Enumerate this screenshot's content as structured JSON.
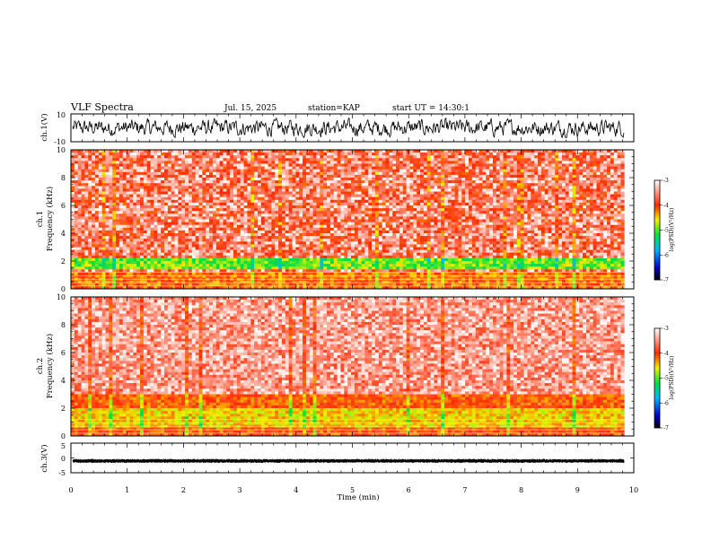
{
  "header": {
    "title": "VLF Spectra",
    "date": "Jul. 15, 2025",
    "station": "station=KAP",
    "start_time": "start UT =  14:30:1"
  },
  "chart_data": [
    {
      "type": "line",
      "name": "ch1-voltage",
      "ylabel": "ch.1(V)",
      "ylim": [
        -10,
        10
      ],
      "yticks": [
        "10",
        "-10"
      ],
      "xlim": [
        0,
        10
      ],
      "x_extent_min": [
        0,
        9.83
      ],
      "description_series": "noisy waveform roughly between -6 and 6 V"
    },
    {
      "type": "heatmap",
      "name": "ch1-spectrogram",
      "ylabel": "ch.1\nFrequency (kHz)",
      "ylabel_lines": [
        "ch.1",
        "Frequency (kHz)"
      ],
      "ylim": [
        0,
        10
      ],
      "yticks": [
        "0",
        "2",
        "4",
        "6",
        "8",
        "10"
      ],
      "xlim": [
        0,
        10
      ],
      "colorbar": {
        "label": "log(PSD)(V²/Hz)",
        "range": [
          -7,
          -3
        ],
        "ticks": [
          "-3",
          "-4",
          "-5",
          "-6",
          "-7"
        ]
      },
      "bands_khz": {
        "green_band": [
          1.4,
          2.1
        ],
        "high_power_below": 1.3
      }
    },
    {
      "type": "heatmap",
      "name": "ch2-spectrogram",
      "ylabel": "ch.2\nFrequency (kHz)",
      "ylabel_lines": [
        "ch.2",
        "Frequency (kHz)"
      ],
      "ylim": [
        0,
        10
      ],
      "yticks": [
        "0",
        "2",
        "4",
        "6",
        "8",
        "10"
      ],
      "xlim": [
        0,
        10
      ],
      "colorbar": {
        "label": "log(PSD)(V²/Hz)",
        "range": [
          -7,
          -3
        ],
        "ticks": [
          "-3",
          "-4",
          "-5",
          "-6",
          "-7"
        ]
      },
      "bands_khz": {
        "yellow_band": [
          0.6,
          2.0
        ],
        "high_power_below": 3.0
      }
    },
    {
      "type": "line",
      "name": "ch3-voltage",
      "ylabel": "ch.3(V)",
      "ylim": [
        -5,
        5
      ],
      "yticks": [
        "5",
        "0",
        "-5"
      ],
      "xlim": [
        0,
        10
      ],
      "xticks": [
        "0",
        "1",
        "2",
        "3",
        "4",
        "5",
        "6",
        "7",
        "8",
        "9",
        "10"
      ],
      "xlabel": "Time (min)",
      "description_series": "dense oscillation band near -1 V"
    }
  ]
}
